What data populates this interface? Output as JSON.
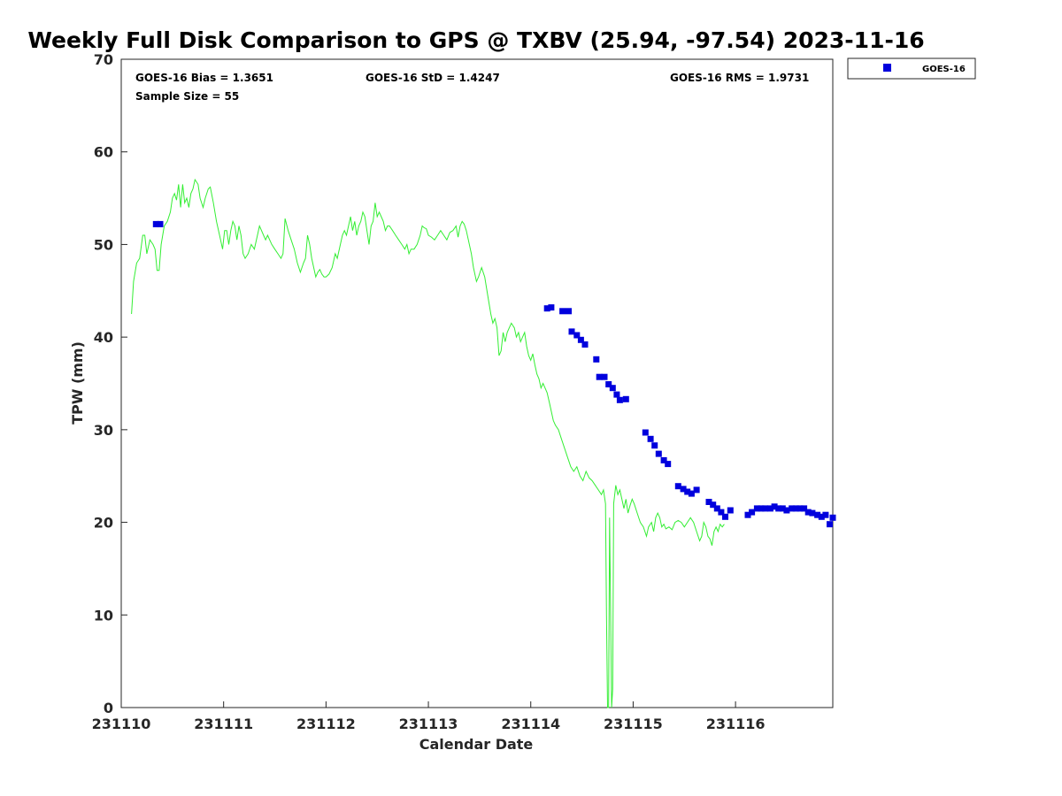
{
  "chart_data": {
    "type": "line",
    "title": "Weekly Full Disk Comparison to GPS @ TXBV (25.94, -97.54) 2023-11-16",
    "xlabel": "Calendar Date",
    "ylabel": "TPW (mm)",
    "xlim": [
      0,
      6.95
    ],
    "ylim": [
      0,
      70
    ],
    "grid": false,
    "legend_placement": "top-right outside",
    "x_ticks": [
      {
        "value": 0,
        "label": "231110"
      },
      {
        "value": 1,
        "label": "231111"
      },
      {
        "value": 2,
        "label": "231112"
      },
      {
        "value": 3,
        "label": "231113"
      },
      {
        "value": 4,
        "label": "231114"
      },
      {
        "value": 5,
        "label": "231115"
      },
      {
        "value": 6,
        "label": "231116"
      }
    ],
    "y_ticks": [
      {
        "value": 0,
        "label": "0"
      },
      {
        "value": 10,
        "label": "10"
      },
      {
        "value": 20,
        "label": "20"
      },
      {
        "value": 30,
        "label": "30"
      },
      {
        "value": 40,
        "label": "40"
      },
      {
        "value": 50,
        "label": "50"
      },
      {
        "value": 60,
        "label": "60"
      },
      {
        "value": 70,
        "label": "70"
      }
    ],
    "stats": {
      "bias": "GOES-16 Bias = 1.3651",
      "std": "GOES-16 StD = 1.4247",
      "rms": "GOES-16 RMS = 1.9731",
      "sample": "Sample Size = 55"
    },
    "colors": {
      "gps_line": "#33ee33",
      "goes": "#0000dd"
    },
    "series": [
      {
        "kind": "line",
        "points": [
          [
            0.1,
            42.5
          ],
          [
            0.12,
            46
          ],
          [
            0.15,
            48
          ],
          [
            0.18,
            48.5
          ],
          [
            0.21,
            51
          ],
          [
            0.23,
            51
          ],
          [
            0.25,
            49
          ],
          [
            0.28,
            50.5
          ],
          [
            0.31,
            50
          ],
          [
            0.33,
            49.5
          ],
          [
            0.35,
            47.2
          ],
          [
            0.37,
            47.2
          ],
          [
            0.39,
            50
          ],
          [
            0.42,
            52
          ],
          [
            0.45,
            52.5
          ],
          [
            0.48,
            53.5
          ],
          [
            0.5,
            55
          ],
          [
            0.52,
            55.5
          ],
          [
            0.54,
            54.8
          ],
          [
            0.56,
            56.5
          ],
          [
            0.58,
            54
          ],
          [
            0.6,
            56.5
          ],
          [
            0.62,
            54.5
          ],
          [
            0.64,
            55
          ],
          [
            0.66,
            54
          ],
          [
            0.68,
            55.5
          ],
          [
            0.7,
            56
          ],
          [
            0.72,
            57
          ],
          [
            0.75,
            56.5
          ],
          [
            0.77,
            55
          ],
          [
            0.8,
            54
          ],
          [
            0.82,
            55
          ],
          [
            0.85,
            56
          ],
          [
            0.87,
            56.2
          ],
          [
            0.9,
            54.5
          ],
          [
            0.93,
            52.5
          ],
          [
            0.96,
            51
          ],
          [
            0.99,
            49.5
          ],
          [
            1.01,
            51.5
          ],
          [
            1.03,
            51.5
          ],
          [
            1.05,
            50
          ],
          [
            1.07,
            51.5
          ],
          [
            1.09,
            52.5
          ],
          [
            1.11,
            52
          ],
          [
            1.13,
            50.5
          ],
          [
            1.15,
            52
          ],
          [
            1.17,
            51
          ],
          [
            1.19,
            49
          ],
          [
            1.21,
            48.5
          ],
          [
            1.24,
            49
          ],
          [
            1.27,
            50
          ],
          [
            1.3,
            49.5
          ],
          [
            1.33,
            51
          ],
          [
            1.35,
            52
          ],
          [
            1.37,
            51.5
          ],
          [
            1.39,
            51
          ],
          [
            1.41,
            50.5
          ],
          [
            1.43,
            51
          ],
          [
            1.45,
            50.5
          ],
          [
            1.47,
            50
          ],
          [
            1.5,
            49.5
          ],
          [
            1.53,
            49
          ],
          [
            1.56,
            48.5
          ],
          [
            1.58,
            49
          ],
          [
            1.6,
            52.8
          ],
          [
            1.63,
            51.5
          ],
          [
            1.66,
            50.5
          ],
          [
            1.69,
            49.5
          ],
          [
            1.72,
            48
          ],
          [
            1.75,
            47
          ],
          [
            1.78,
            48
          ],
          [
            1.8,
            48.5
          ],
          [
            1.82,
            51
          ],
          [
            1.84,
            50
          ],
          [
            1.86,
            48.5
          ],
          [
            1.88,
            47.5
          ],
          [
            1.9,
            46.5
          ],
          [
            1.92,
            47
          ],
          [
            1.94,
            47.3
          ],
          [
            1.96,
            46.8
          ],
          [
            1.98,
            46.5
          ],
          [
            2.0,
            46.5
          ],
          [
            2.03,
            46.8
          ],
          [
            2.06,
            47.5
          ],
          [
            2.09,
            49
          ],
          [
            2.11,
            48.5
          ],
          [
            2.14,
            50
          ],
          [
            2.16,
            51
          ],
          [
            2.18,
            51.5
          ],
          [
            2.2,
            51
          ],
          [
            2.22,
            52
          ],
          [
            2.24,
            53
          ],
          [
            2.26,
            51.5
          ],
          [
            2.28,
            52.5
          ],
          [
            2.3,
            51
          ],
          [
            2.32,
            52
          ],
          [
            2.34,
            52.5
          ],
          [
            2.36,
            53.5
          ],
          [
            2.38,
            53
          ],
          [
            2.4,
            51.5
          ],
          [
            2.42,
            50
          ],
          [
            2.44,
            52
          ],
          [
            2.46,
            52.5
          ],
          [
            2.48,
            54.5
          ],
          [
            2.5,
            53
          ],
          [
            2.52,
            53.5
          ],
          [
            2.54,
            53
          ],
          [
            2.56,
            52.5
          ],
          [
            2.58,
            51.5
          ],
          [
            2.6,
            52
          ],
          [
            2.62,
            52
          ],
          [
            2.65,
            51.5
          ],
          [
            2.68,
            51
          ],
          [
            2.71,
            50.5
          ],
          [
            2.74,
            50
          ],
          [
            2.77,
            49.5
          ],
          [
            2.79,
            50
          ],
          [
            2.81,
            49
          ],
          [
            2.83,
            49.5
          ],
          [
            2.86,
            49.5
          ],
          [
            2.89,
            50
          ],
          [
            2.92,
            51
          ],
          [
            2.94,
            52
          ],
          [
            2.96,
            51.8
          ],
          [
            2.98,
            51.7
          ],
          [
            3.0,
            51
          ],
          [
            3.03,
            50.8
          ],
          [
            3.06,
            50.5
          ],
          [
            3.09,
            51
          ],
          [
            3.12,
            51.5
          ],
          [
            3.15,
            51
          ],
          [
            3.18,
            50.5
          ],
          [
            3.21,
            51.3
          ],
          [
            3.24,
            51.5
          ],
          [
            3.27,
            52
          ],
          [
            3.29,
            50.8
          ],
          [
            3.31,
            52
          ],
          [
            3.33,
            52.5
          ],
          [
            3.35,
            52.2
          ],
          [
            3.37,
            51.5
          ],
          [
            3.39,
            50.5
          ],
          [
            3.42,
            49
          ],
          [
            3.44,
            47.5
          ],
          [
            3.47,
            46
          ],
          [
            3.49,
            46.5
          ],
          [
            3.52,
            47.5
          ],
          [
            3.55,
            46.5
          ],
          [
            3.58,
            44.5
          ],
          [
            3.61,
            42.5
          ],
          [
            3.63,
            41.5
          ],
          [
            3.65,
            42
          ],
          [
            3.67,
            41
          ],
          [
            3.69,
            38
          ],
          [
            3.71,
            38.5
          ],
          [
            3.73,
            40.5
          ],
          [
            3.75,
            39.5
          ],
          [
            3.77,
            40.5
          ],
          [
            3.79,
            41
          ],
          [
            3.81,
            41.5
          ],
          [
            3.84,
            41
          ],
          [
            3.86,
            40
          ],
          [
            3.88,
            40.5
          ],
          [
            3.9,
            39.5
          ],
          [
            3.92,
            40
          ],
          [
            3.94,
            40.5
          ],
          [
            3.96,
            39
          ],
          [
            3.98,
            38
          ],
          [
            4.0,
            37.5
          ],
          [
            4.02,
            38.2
          ],
          [
            4.04,
            37
          ],
          [
            4.06,
            36
          ],
          [
            4.08,
            35.5
          ],
          [
            4.1,
            34.5
          ],
          [
            4.12,
            35
          ],
          [
            4.14,
            34.5
          ],
          [
            4.16,
            34
          ],
          [
            4.18,
            33
          ],
          [
            4.2,
            32
          ],
          [
            4.22,
            31
          ],
          [
            4.24,
            30.5
          ],
          [
            4.27,
            30
          ],
          [
            4.3,
            29
          ],
          [
            4.33,
            28
          ],
          [
            4.36,
            27
          ],
          [
            4.39,
            26
          ],
          [
            4.42,
            25.5
          ],
          [
            4.45,
            26
          ],
          [
            4.48,
            25
          ],
          [
            4.51,
            24.5
          ],
          [
            4.54,
            25.5
          ],
          [
            4.57,
            24.8
          ],
          [
            4.6,
            24.5
          ],
          [
            4.63,
            24
          ],
          [
            4.66,
            23.5
          ],
          [
            4.69,
            23
          ],
          [
            4.71,
            23.5
          ],
          [
            4.73,
            22
          ],
          [
            4.74,
            10
          ],
          [
            4.75,
            0
          ],
          [
            4.76,
            0
          ],
          [
            4.77,
            20.5
          ],
          [
            4.78,
            10
          ],
          [
            4.79,
            0
          ],
          [
            4.8,
            2
          ],
          [
            4.81,
            22
          ],
          [
            4.83,
            24
          ],
          [
            4.85,
            23
          ],
          [
            4.87,
            23.5
          ],
          [
            4.89,
            22.5
          ],
          [
            4.91,
            21.5
          ],
          [
            4.93,
            22.5
          ],
          [
            4.95,
            21
          ],
          [
            4.97,
            21.8
          ],
          [
            4.99,
            22.5
          ],
          [
            5.01,
            22
          ],
          [
            5.04,
            21
          ],
          [
            5.07,
            20
          ],
          [
            5.1,
            19.5
          ],
          [
            5.13,
            18.5
          ],
          [
            5.15,
            19.5
          ],
          [
            5.18,
            20
          ],
          [
            5.2,
            19
          ],
          [
            5.22,
            20.5
          ],
          [
            5.24,
            21
          ],
          [
            5.26,
            20.5
          ],
          [
            5.28,
            19.5
          ],
          [
            5.3,
            19.8
          ],
          [
            5.32,
            19.3
          ],
          [
            5.35,
            19.5
          ],
          [
            5.38,
            19.2
          ],
          [
            5.41,
            20
          ],
          [
            5.44,
            20.2
          ],
          [
            5.47,
            20
          ],
          [
            5.5,
            19.5
          ],
          [
            5.53,
            20
          ],
          [
            5.56,
            20.5
          ],
          [
            5.59,
            20
          ],
          [
            5.62,
            19
          ],
          [
            5.65,
            18
          ],
          [
            5.67,
            18.5
          ],
          [
            5.69,
            20
          ],
          [
            5.71,
            19.5
          ],
          [
            5.73,
            18.5
          ],
          [
            5.75,
            18.2
          ],
          [
            5.77,
            17.5
          ],
          [
            5.79,
            19
          ],
          [
            5.81,
            19.5
          ],
          [
            5.83,
            19
          ],
          [
            5.85,
            19.8
          ],
          [
            5.87,
            19.5
          ],
          [
            5.89,
            19.8
          ]
        ]
      },
      {
        "name": "GOES-16",
        "kind": "scatter",
        "points": [
          [
            0.34,
            52.2
          ],
          [
            0.38,
            52.2
          ],
          [
            4.16,
            43.1
          ],
          [
            4.2,
            43.2
          ],
          [
            4.31,
            42.8
          ],
          [
            4.37,
            42.8
          ],
          [
            4.4,
            40.6
          ],
          [
            4.45,
            40.2
          ],
          [
            4.49,
            39.7
          ],
          [
            4.53,
            39.2
          ],
          [
            4.64,
            37.6
          ],
          [
            4.67,
            35.7
          ],
          [
            4.72,
            35.7
          ],
          [
            4.76,
            34.9
          ],
          [
            4.8,
            34.5
          ],
          [
            4.84,
            33.8
          ],
          [
            4.87,
            33.2
          ],
          [
            4.93,
            33.3
          ],
          [
            5.12,
            29.7
          ],
          [
            5.17,
            29.0
          ],
          [
            5.21,
            28.3
          ],
          [
            5.25,
            27.4
          ],
          [
            5.3,
            26.7
          ],
          [
            5.34,
            26.3
          ],
          [
            5.44,
            23.9
          ],
          [
            5.49,
            23.6
          ],
          [
            5.53,
            23.3
          ],
          [
            5.57,
            23.1
          ],
          [
            5.62,
            23.5
          ],
          [
            5.74,
            22.2
          ],
          [
            5.78,
            21.9
          ],
          [
            5.82,
            21.5
          ],
          [
            5.86,
            21.1
          ],
          [
            5.9,
            20.6
          ],
          [
            5.95,
            21.3
          ],
          [
            6.12,
            20.8
          ],
          [
            6.16,
            21.1
          ],
          [
            6.21,
            21.5
          ],
          [
            6.25,
            21.5
          ],
          [
            6.29,
            21.5
          ],
          [
            6.34,
            21.5
          ],
          [
            6.38,
            21.7
          ],
          [
            6.42,
            21.5
          ],
          [
            6.46,
            21.5
          ],
          [
            6.5,
            21.3
          ],
          [
            6.55,
            21.5
          ],
          [
            6.59,
            21.5
          ],
          [
            6.63,
            21.5
          ],
          [
            6.67,
            21.5
          ],
          [
            6.71,
            21.1
          ],
          [
            6.75,
            21.0
          ],
          [
            6.8,
            20.8
          ],
          [
            6.84,
            20.6
          ],
          [
            6.88,
            20.8
          ],
          [
            6.92,
            19.8
          ],
          [
            6.95,
            20.5
          ]
        ]
      }
    ]
  }
}
